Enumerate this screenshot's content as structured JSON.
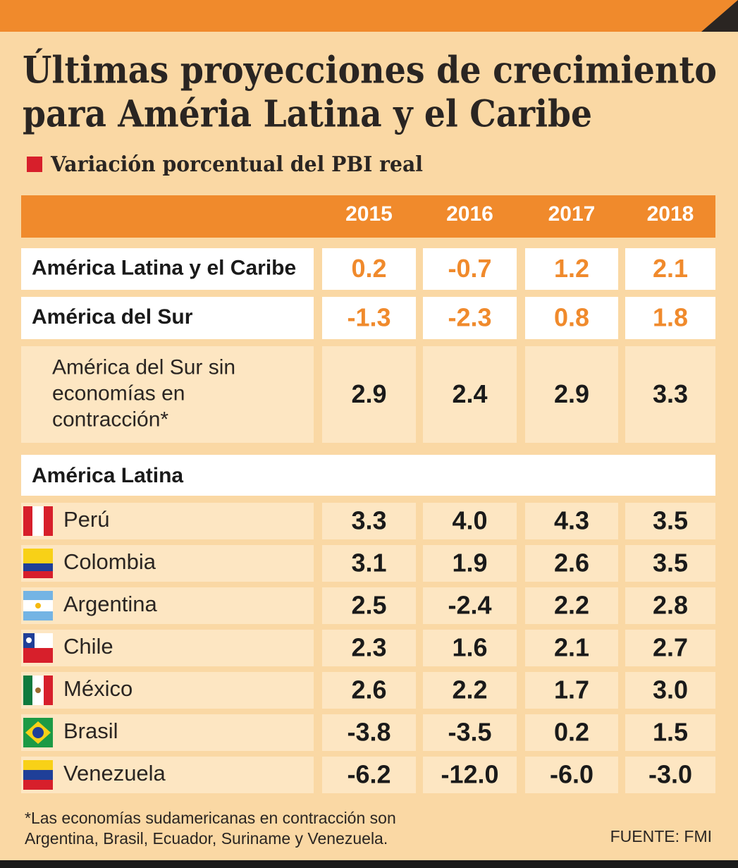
{
  "header": {
    "title": [
      "Últimas proyecciones de crecimiento",
      "para Améria Latina y el Caribe"
    ],
    "subtitle": "Variación porcentual del PBI real"
  },
  "table": {
    "columns": [
      "2015",
      "2016",
      "2017",
      "2018"
    ],
    "rows": [
      {
        "label": "América Latina y el Caribe",
        "values": [
          "0.2",
          "-0.7",
          "1.2",
          "2.1"
        ]
      },
      {
        "label": "América del Sur",
        "values": [
          "-1.3",
          "-2.3",
          "0.8",
          "1.8"
        ]
      },
      {
        "label": [
          "América del Sur sin",
          "economías en",
          "contracción*"
        ],
        "values": [
          "2.9",
          "2.4",
          "2.9",
          "3.3"
        ]
      }
    ],
    "section": "América Latina",
    "countries": [
      {
        "label": "Perú",
        "values": [
          "3.3",
          "4.0",
          "4.3",
          "3.5"
        ]
      },
      {
        "label": "Colombia",
        "values": [
          "3.1",
          "1.9",
          "2.6",
          "3.5"
        ]
      },
      {
        "label": "Argentina",
        "values": [
          "2.5",
          "-2.4",
          "2.2",
          "2.8"
        ]
      },
      {
        "label": "Chile",
        "values": [
          "2.3",
          "1.6",
          "2.1",
          "2.7"
        ]
      },
      {
        "label": "México",
        "values": [
          "2.6",
          "2.2",
          "1.7",
          "3.0"
        ]
      },
      {
        "label": "Brasil",
        "values": [
          "-3.8",
          "-3.5",
          "0.2",
          "1.5"
        ]
      },
      {
        "label": "Venezuela",
        "values": [
          "-6.2",
          "-12.0",
          "-6.0",
          "-3.0"
        ]
      }
    ]
  },
  "footer": {
    "note": [
      "*Las economías sudamericanas en contracción son",
      "Argentina, Brasil, Ecuador, Suriname y Venezuela."
    ],
    "source": "FUENTE: FMI"
  }
}
